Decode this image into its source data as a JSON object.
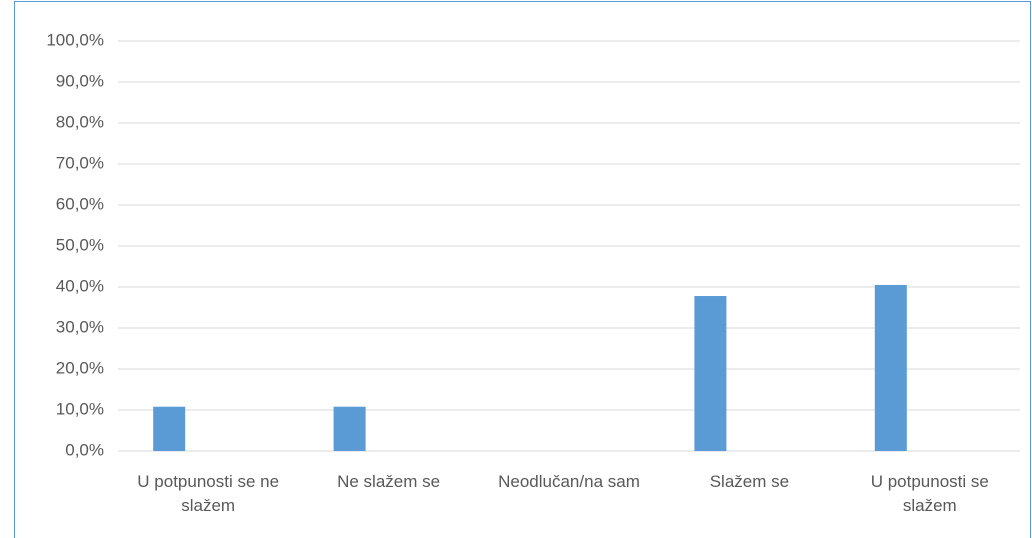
{
  "chart_data": {
    "type": "bar",
    "categories": [
      "U potpunosti se ne slažem",
      "Ne slažem se",
      "Neodlučan/na sam",
      "Slažem se",
      "U potpunosti se slažem"
    ],
    "values": [
      10.8,
      10.8,
      0,
      37.8,
      40.5
    ],
    "color": "#5b9bd5",
    "ylim": [
      0,
      100
    ],
    "yticks": [
      {
        "value": 0,
        "label": "0,0%"
      },
      {
        "value": 10,
        "label": "10,0%"
      },
      {
        "value": 20,
        "label": "20,0%"
      },
      {
        "value": 30,
        "label": "30,0%"
      },
      {
        "value": 40,
        "label": "40,0%"
      },
      {
        "value": 50,
        "label": "50,0%"
      },
      {
        "value": 60,
        "label": "60,0%"
      },
      {
        "value": 70,
        "label": "70,0%"
      },
      {
        "value": 80,
        "label": "80,0%"
      },
      {
        "value": 90,
        "label": "90,0%"
      },
      {
        "value": 100,
        "label": "100,0%"
      }
    ],
    "grid": true
  }
}
